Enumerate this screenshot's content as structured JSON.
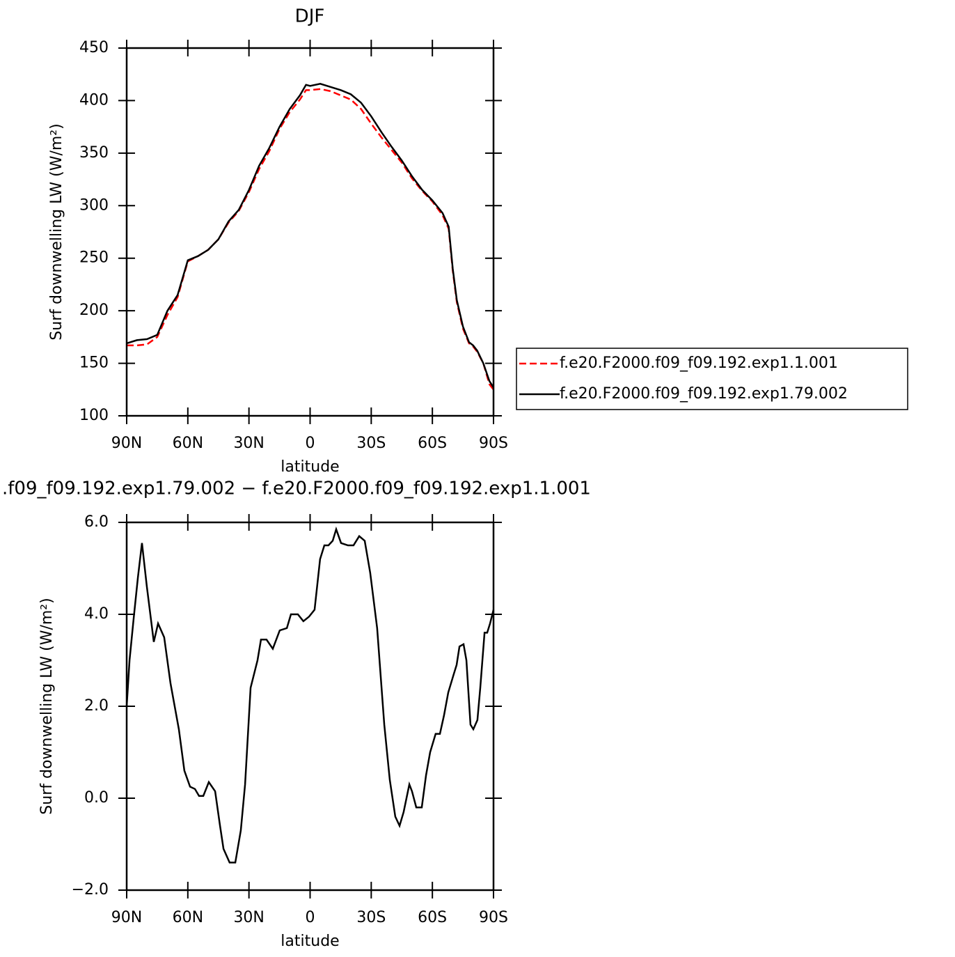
{
  "chart_data": [
    {
      "type": "line",
      "title": "DJF",
      "xlabel": "latitude",
      "ylabel": "Surf downwelling LW (W/m²)",
      "x": [
        90,
        85,
        80,
        75,
        70,
        65,
        60,
        55,
        50,
        45,
        40,
        35,
        30,
        25,
        20,
        15,
        10,
        5,
        2,
        0,
        -5,
        -10,
        -15,
        -20,
        -25,
        -30,
        -35,
        -40,
        -45,
        -50,
        -55,
        -60,
        -65,
        -68,
        -70,
        -72,
        -75,
        -78,
        -80,
        -82,
        -85,
        -88,
        -90
      ],
      "series": [
        {
          "name": "f.e20.F2000.f09_f09.192.exp1.1.001",
          "color": "#ff0000",
          "dash": "dashed",
          "values": [
            167,
            167,
            168,
            175,
            196,
            213,
            247,
            252,
            258,
            268,
            284,
            295,
            313,
            335,
            352,
            373,
            389,
            401,
            410,
            410,
            411,
            409,
            405,
            401,
            392,
            378,
            365,
            353,
            341,
            326,
            314,
            304,
            291,
            278,
            238,
            208,
            183,
            169,
            166,
            161,
            150,
            130,
            125
          ]
        },
        {
          "name": "f.e20.F2000.f09_f09.192.exp1.79.002",
          "color": "#000000",
          "dash": "solid",
          "values": [
            169,
            172,
            173,
            177,
            200,
            215,
            248,
            252,
            258,
            268,
            285,
            296,
            315,
            338,
            355,
            375,
            392,
            405,
            415,
            414,
            416,
            413,
            410,
            406,
            398,
            385,
            370,
            356,
            343,
            328,
            315,
            305,
            293,
            280,
            240,
            210,
            185,
            170,
            167,
            162,
            150,
            133,
            127
          ]
        }
      ],
      "xlim": [
        90,
        -90
      ],
      "xticks": [
        {
          "value": 90,
          "label": "90N"
        },
        {
          "value": 60,
          "label": "60N"
        },
        {
          "value": 30,
          "label": "30N"
        },
        0,
        {
          "value": -30,
          "label": "30S"
        },
        {
          "value": -60,
          "label": "60S"
        },
        {
          "value": -90,
          "label": "90S"
        }
      ],
      "ylim": [
        100,
        450
      ],
      "yticks": [
        100,
        150,
        200,
        250,
        300,
        350,
        400,
        450
      ],
      "legend": "right"
    },
    {
      "type": "line",
      "title": ".f09_f09.192.exp1.79.002 − f.e20.F2000.f09_f09.192.exp1.1.001",
      "xlabel": "latitude",
      "ylabel": "Surf downwelling LW (W/m²)",
      "x": [
        90,
        88.6,
        86.6,
        84.5,
        82.5,
        80.1,
        76.7,
        74.6,
        71.6,
        68.5,
        64.4,
        61.7,
        58.9,
        56.5,
        54.5,
        52.4,
        49.7,
        46.6,
        44.2,
        42.5,
        39.5,
        36.7,
        34,
        31.9,
        29.2,
        25.8,
        24.1,
        21.4,
        18.3,
        14.9,
        11.4,
        9.4,
        6,
        3.3,
        0.5,
        -2.2,
        -4.9,
        -7,
        -9,
        -11.1,
        -12.8,
        -15.2,
        -18.6,
        -21.3,
        -24.1,
        -26.8,
        -29.5,
        -32.9,
        -36.4,
        -39.1,
        -41.8,
        -43.9,
        -45.9,
        -48.7,
        -50,
        -52.1,
        -54.8,
        -56.9,
        -58.9,
        -61.6,
        -63.7,
        -65.7,
        -67.8,
        -70.5,
        -71.9,
        -73.3,
        -75.3,
        -76.7,
        -78.7,
        -80.1,
        -82.1,
        -83.5,
        -85.6,
        -86.9,
        -88.3,
        -90
      ],
      "values": [
        2.0,
        3.0,
        3.9,
        4.8,
        5.55,
        4.6,
        3.4,
        3.8,
        3.5,
        2.5,
        1.5,
        0.6,
        0.25,
        0.2,
        0.05,
        0.05,
        0.35,
        0.15,
        -0.6,
        -1.1,
        -1.4,
        -1.4,
        -0.7,
        0.3,
        2.4,
        3.0,
        3.45,
        3.45,
        3.25,
        3.65,
        3.7,
        4.0,
        4.0,
        3.85,
        3.95,
        4.1,
        5.2,
        5.5,
        5.5,
        5.6,
        5.85,
        5.55,
        5.5,
        5.5,
        5.7,
        5.6,
        4.9,
        3.7,
        1.6,
        0.4,
        -0.4,
        -0.6,
        -0.3,
        0.3,
        0.15,
        -0.2,
        -0.2,
        0.5,
        1.0,
        1.4,
        1.4,
        1.8,
        2.3,
        2.7,
        2.9,
        3.3,
        3.35,
        3.0,
        1.6,
        1.5,
        1.7,
        2.4,
        3.6,
        3.6,
        3.8,
        4.1
      ],
      "color": "#000000",
      "xlim": [
        90,
        -90
      ],
      "xticks": [
        {
          "value": 90,
          "label": "90N"
        },
        {
          "value": 60,
          "label": "60N"
        },
        {
          "value": 30,
          "label": "30N"
        },
        0,
        {
          "value": -30,
          "label": "30S"
        },
        {
          "value": -60,
          "label": "60S"
        },
        {
          "value": -90,
          "label": "90S"
        }
      ],
      "ylim": [
        -2,
        6
      ],
      "yticks": [
        {
          "value": -2,
          "label": "−2.0"
        },
        {
          "value": 0,
          "label": "0.0"
        },
        {
          "value": 2,
          "label": "2.0"
        },
        {
          "value": 4,
          "label": "4.0"
        },
        {
          "value": 6,
          "label": "6.0"
        }
      ]
    }
  ]
}
